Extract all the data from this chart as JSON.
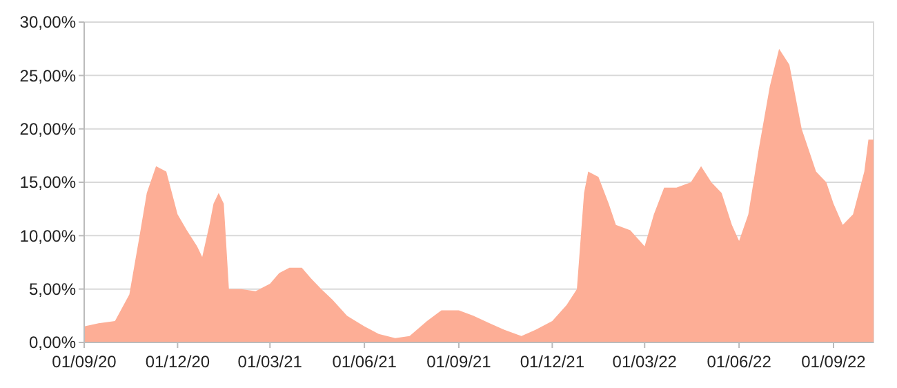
{
  "chart_data": {
    "type": "area",
    "color": "#fdae96",
    "grid": "y",
    "x": [
      "2020-09-01",
      "2020-09-15",
      "2020-10-01",
      "2020-10-15",
      "2020-10-25",
      "2020-11-01",
      "2020-11-10",
      "2020-11-20",
      "2020-12-01",
      "2020-12-10",
      "2020-12-20",
      "2020-12-25",
      "2021-01-01",
      "2021-01-05",
      "2021-01-10",
      "2021-01-15",
      "2021-01-20",
      "2021-02-01",
      "2021-02-15",
      "2021-03-01",
      "2021-03-10",
      "2021-03-20",
      "2021-04-01",
      "2021-04-10",
      "2021-04-20",
      "2021-05-01",
      "2021-05-15",
      "2021-06-01",
      "2021-06-15",
      "2021-07-01",
      "2021-07-15",
      "2021-08-01",
      "2021-08-15",
      "2021-09-01",
      "2021-09-15",
      "2021-10-01",
      "2021-10-15",
      "2021-11-01",
      "2021-11-15",
      "2021-12-01",
      "2021-12-15",
      "2021-12-25",
      "2022-01-01",
      "2022-01-05",
      "2022-01-15",
      "2022-01-25",
      "2022-02-01",
      "2022-02-15",
      "2022-03-01",
      "2022-03-10",
      "2022-03-20",
      "2022-04-01",
      "2022-04-15",
      "2022-04-25",
      "2022-05-05",
      "2022-05-15",
      "2022-05-25",
      "2022-06-01",
      "2022-06-10",
      "2022-06-20",
      "2022-07-01",
      "2022-07-10",
      "2022-07-20",
      "2022-08-01",
      "2022-08-15",
      "2022-08-25",
      "2022-09-01",
      "2022-09-10",
      "2022-09-20",
      "2022-10-01",
      "2022-10-05",
      "2022-10-10"
    ],
    "values": [
      1.5,
      1.8,
      2,
      4.5,
      10,
      14,
      16.5,
      16,
      12,
      10.5,
      9,
      8,
      11,
      13,
      14,
      13,
      5,
      5,
      4.8,
      5.5,
      6.5,
      7,
      7,
      6,
      5,
      4,
      2.5,
      1.5,
      0.8,
      0.4,
      0.6,
      2,
      3,
      3,
      2.5,
      1.8,
      1.2,
      0.6,
      1.2,
      2,
      3.5,
      5,
      14,
      16,
      15.5,
      13,
      11,
      10.5,
      9,
      12,
      14.5,
      14.5,
      15,
      16.5,
      15,
      14,
      11,
      9.5,
      12,
      18,
      24,
      27.5,
      26,
      20,
      16,
      15,
      13,
      11,
      12,
      16,
      19,
      19
    ],
    "xlim": [
      "2020-09-01",
      "2022-10-10"
    ],
    "xticks": [
      {
        "value": "2020-09-01",
        "label": "01/09/20"
      },
      {
        "value": "2020-12-01",
        "label": "01/12/20"
      },
      {
        "value": "2021-03-01",
        "label": "01/03/21"
      },
      {
        "value": "2021-06-01",
        "label": "01/06/21"
      },
      {
        "value": "2021-09-01",
        "label": "01/09/21"
      },
      {
        "value": "2021-12-01",
        "label": "01/12/21"
      },
      {
        "value": "2022-03-01",
        "label": "01/03/22"
      },
      {
        "value": "2022-06-01",
        "label": "01/06/22"
      },
      {
        "value": "2022-09-01",
        "label": "01/09/22"
      }
    ],
    "ylim": [
      0,
      30
    ],
    "yticks": [
      {
        "value": 0,
        "label": "0,00%"
      },
      {
        "value": 5,
        "label": "5,00%"
      },
      {
        "value": 10,
        "label": "10,00%"
      },
      {
        "value": 15,
        "label": "15,00%"
      },
      {
        "value": 20,
        "label": "20,00%"
      },
      {
        "value": 25,
        "label": "25,00%"
      },
      {
        "value": 30,
        "label": "30,00%"
      }
    ]
  }
}
